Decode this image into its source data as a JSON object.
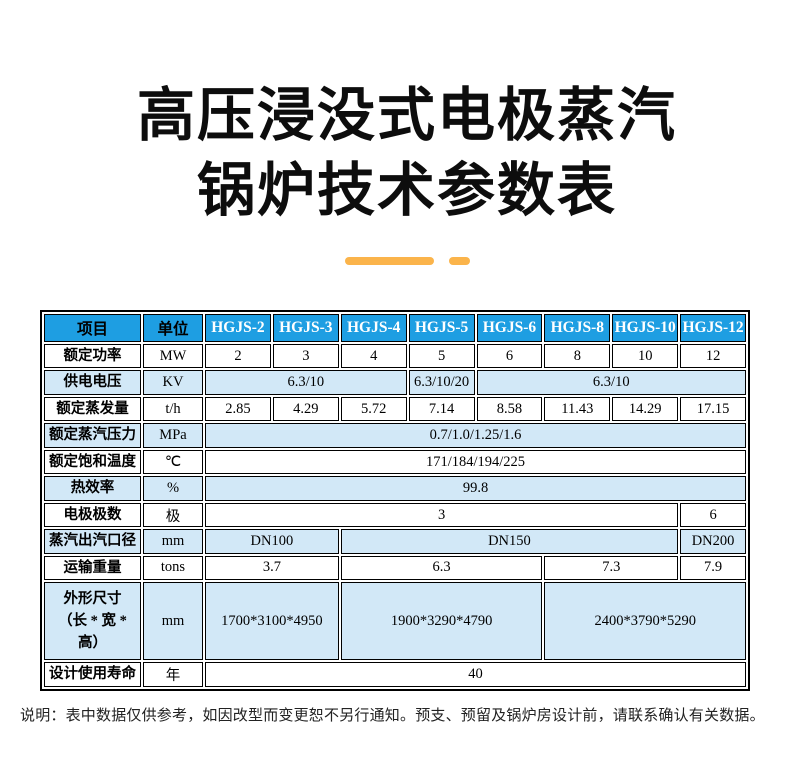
{
  "page": {
    "title_line1": "高压浸没式电极蒸汽",
    "title_line2": "锅炉技术参数表",
    "note": "说明：表中数据仅供参考，如因改型而变更恕不另行通知。预支、预留及锅炉房设计前，请联系确认有关数据。"
  },
  "colors": {
    "header_blue": "#1E9EE2",
    "row_shaded_blue": "#D2E8F7",
    "accent_orange": "#FBB44B",
    "grid_black": "#000000"
  },
  "table": {
    "columns": [
      "项目",
      "单位",
      "HGJS-2",
      "HGJS-3",
      "HGJS-4",
      "HGJS-5",
      "HGJS-6",
      "HGJS-8",
      "HGJS-10",
      "HGJS-12"
    ],
    "rows": [
      {
        "label": "额定功率",
        "unit": "MW",
        "shaded": false,
        "tall": false,
        "cells": [
          {
            "text": "2",
            "span": 1
          },
          {
            "text": "3",
            "span": 1
          },
          {
            "text": "4",
            "span": 1
          },
          {
            "text": "5",
            "span": 1
          },
          {
            "text": "6",
            "span": 1
          },
          {
            "text": "8",
            "span": 1
          },
          {
            "text": "10",
            "span": 1
          },
          {
            "text": "12",
            "span": 1
          }
        ]
      },
      {
        "label": "供电电压",
        "unit": "KV",
        "shaded": true,
        "tall": false,
        "cells": [
          {
            "text": "6.3/10",
            "span": 3
          },
          {
            "text": "6.3/10/20",
            "span": 1
          },
          {
            "text": "6.3/10",
            "span": 4
          }
        ]
      },
      {
        "label": "额定蒸发量",
        "unit": "t/h",
        "shaded": false,
        "tall": false,
        "cells": [
          {
            "text": "2.85",
            "span": 1
          },
          {
            "text": "4.29",
            "span": 1
          },
          {
            "text": "5.72",
            "span": 1
          },
          {
            "text": "7.14",
            "span": 1
          },
          {
            "text": "8.58",
            "span": 1
          },
          {
            "text": "11.43",
            "span": 1
          },
          {
            "text": "14.29",
            "span": 1
          },
          {
            "text": "17.15",
            "span": 1
          }
        ]
      },
      {
        "label": "额定蒸汽压力",
        "unit": "MPa",
        "shaded": true,
        "tall": false,
        "cells": [
          {
            "text": "0.7/1.0/1.25/1.6",
            "span": 8
          }
        ]
      },
      {
        "label": "额定饱和温度",
        "unit": "℃",
        "shaded": false,
        "tall": false,
        "cells": [
          {
            "text": "171/184/194/225",
            "span": 8
          }
        ]
      },
      {
        "label": "热效率",
        "unit": "%",
        "shaded": true,
        "tall": false,
        "cells": [
          {
            "text": "99.8",
            "span": 8
          }
        ]
      },
      {
        "label": "电极极数",
        "unit": "极",
        "shaded": false,
        "tall": false,
        "cells": [
          {
            "text": "3",
            "span": 7
          },
          {
            "text": "6",
            "span": 1
          }
        ]
      },
      {
        "label": "蒸汽出汽口径",
        "unit": "mm",
        "shaded": true,
        "tall": false,
        "cells": [
          {
            "text": "DN100",
            "span": 2
          },
          {
            "text": "DN150",
            "span": 5
          },
          {
            "text": "DN200",
            "span": 1
          }
        ]
      },
      {
        "label": "运输重量",
        "unit": "tons",
        "shaded": false,
        "tall": false,
        "cells": [
          {
            "text": "3.7",
            "span": 2
          },
          {
            "text": "6.3",
            "span": 3
          },
          {
            "text": "7.3",
            "span": 2
          },
          {
            "text": "7.9",
            "span": 1
          }
        ]
      },
      {
        "label": "外形尺寸\n（长 * 宽 * 高）",
        "unit": "mm",
        "shaded": true,
        "tall": true,
        "cells": [
          {
            "text": "1700*3100*4950",
            "span": 2
          },
          {
            "text": "1900*3290*4790",
            "span": 3
          },
          {
            "text": "2400*3790*5290",
            "span": 3
          }
        ]
      },
      {
        "label": "设计使用寿命",
        "unit": "年",
        "shaded": false,
        "tall": false,
        "cells": [
          {
            "text": "40",
            "span": 8
          }
        ]
      }
    ]
  }
}
